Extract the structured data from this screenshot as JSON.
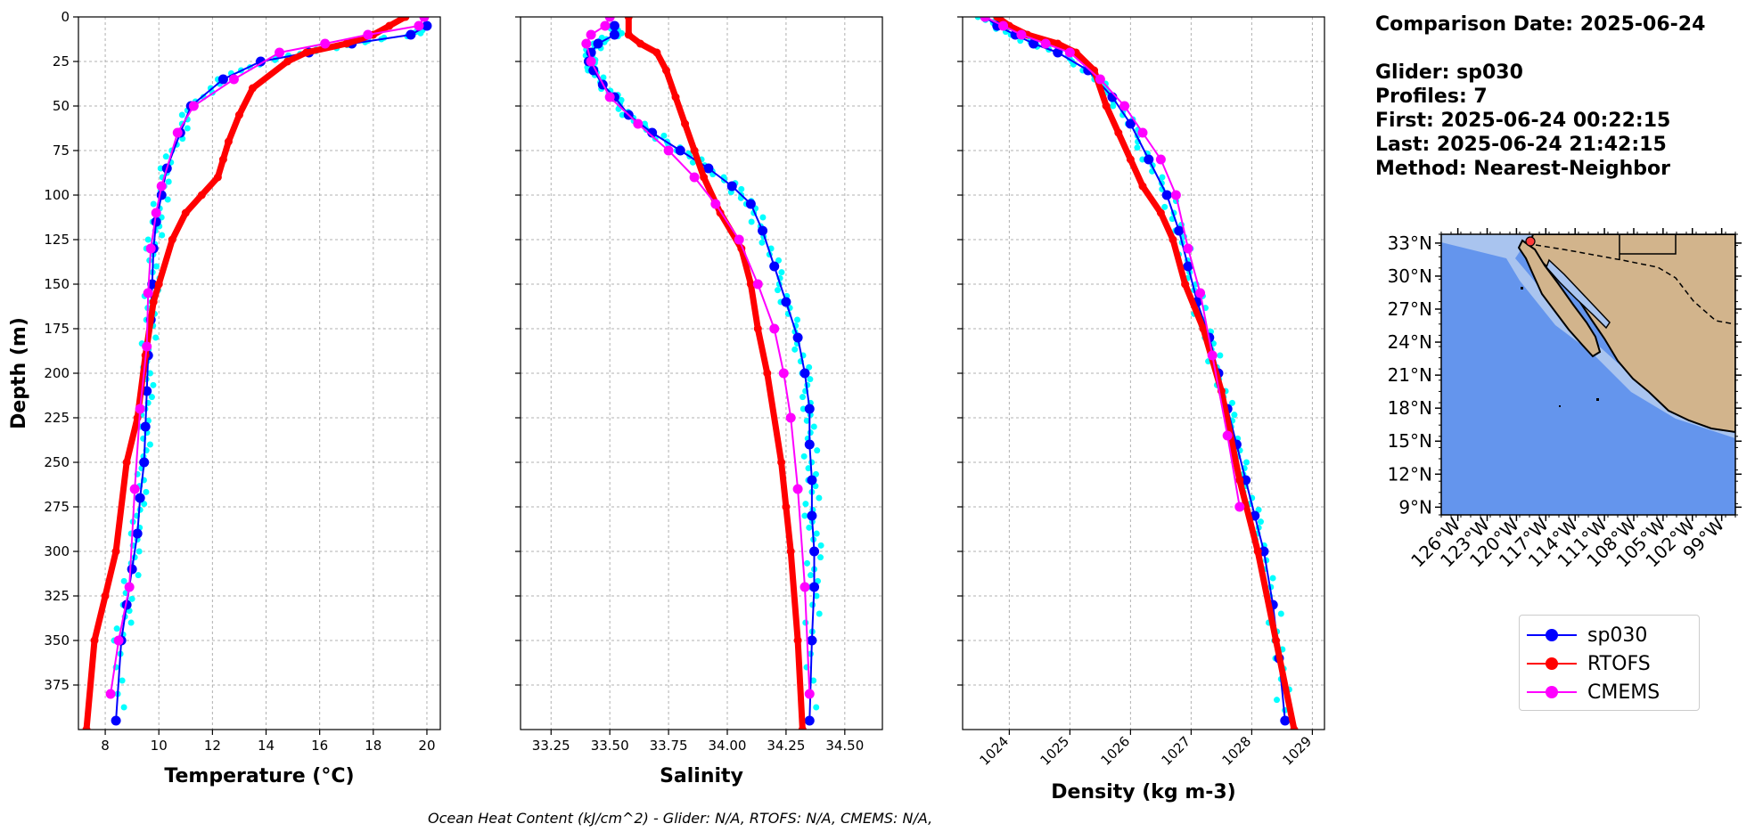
{
  "info": {
    "comparison_date": "Comparison Date: 2025-06-24",
    "glider": "Glider: sp030",
    "profiles": "Profiles: 7",
    "first": "First: 2025-06-24 00:22:15",
    "last": "Last: 2025-06-24 21:42:15",
    "method": "Method: Nearest-Neighbor"
  },
  "footer": "Ocean Heat Content (kJ/cm^2) - Glider: N/A,  RTOFS: N/A,  CMEMS: N/A,",
  "legend": [
    {
      "label": "sp030",
      "color": "#0000ff"
    },
    {
      "label": "RTOFS",
      "color": "#ff0000"
    },
    {
      "label": "CMEMS",
      "color": "#ff00ff"
    }
  ],
  "chart_data": [
    {
      "type": "line",
      "xlabel": "Temperature (°C)",
      "ylabel": "Depth (m)",
      "xlim": [
        7,
        20.5
      ],
      "ylim": [
        400,
        0
      ],
      "xticks": [
        "8",
        "10",
        "12",
        "14",
        "16",
        "18",
        "20"
      ],
      "yticks": [
        "0",
        "25",
        "50",
        "75",
        "100",
        "125",
        "150",
        "175",
        "200",
        "225",
        "250",
        "275",
        "300",
        "325",
        "350",
        "375"
      ],
      "grid": true,
      "series": [
        {
          "name": "sp030",
          "color": "#0000ff",
          "x": [
            20,
            19.4,
            17.2,
            15.6,
            13.8,
            12.4,
            11.2,
            10.8,
            10.3,
            10.1,
            9.9,
            9.8,
            9.75,
            9.7,
            9.6,
            9.55,
            9.5,
            9.45,
            9.3,
            9.2,
            9.0,
            8.8,
            8.6,
            8.4
          ],
          "y": [
            5,
            10,
            15,
            20,
            25,
            35,
            50,
            65,
            85,
            100,
            115,
            130,
            150,
            170,
            190,
            210,
            230,
            250,
            270,
            290,
            310,
            330,
            350,
            395
          ]
        },
        {
          "name": "RTOFS",
          "color": "#ff0000",
          "x": [
            19.2,
            18.6,
            18.0,
            17.0,
            15.5,
            14.8,
            13.5,
            13.0,
            12.6,
            12.4,
            12.2,
            11.6,
            11.0,
            10.5,
            10.0,
            9.8,
            9.5,
            9.2,
            8.8,
            8.4,
            8.0,
            7.6,
            7.3
          ],
          "y": [
            0,
            5,
            10,
            15,
            20,
            25,
            40,
            55,
            70,
            80,
            90,
            100,
            110,
            125,
            150,
            160,
            190,
            225,
            250,
            300,
            325,
            350,
            400
          ]
        },
        {
          "name": "CMEMS",
          "color": "#ff00ff",
          "x": [
            19.9,
            19.7,
            17.8,
            16.2,
            14.5,
            12.8,
            11.3,
            10.7,
            10.1,
            9.9,
            9.7,
            9.6,
            9.55,
            9.3,
            9.1,
            8.9,
            8.5,
            8.2
          ],
          "y": [
            0,
            5,
            10,
            15,
            20,
            35,
            50,
            65,
            95,
            110,
            130,
            155,
            185,
            220,
            265,
            320,
            350,
            380
          ]
        }
      ]
    },
    {
      "type": "line",
      "xlabel": "Salinity",
      "xlim": [
        33.12,
        34.66
      ],
      "ylim": [
        400,
        0
      ],
      "xticks": [
        "33.25",
        "33.50",
        "33.75",
        "34.00",
        "34.25",
        "34.50"
      ],
      "grid": true,
      "series": [
        {
          "name": "sp030",
          "color": "#0000ff",
          "x": [
            33.52,
            33.52,
            33.45,
            33.42,
            33.41,
            33.43,
            33.47,
            33.52,
            33.58,
            33.68,
            33.8,
            33.92,
            34.02,
            34.1,
            34.15,
            34.2,
            34.25,
            34.3,
            34.33,
            34.35,
            34.35,
            34.36,
            34.36,
            34.37,
            34.37,
            34.36,
            34.35
          ],
          "y": [
            5,
            10,
            15,
            20,
            25,
            30,
            38,
            45,
            55,
            65,
            75,
            85,
            95,
            105,
            120,
            140,
            160,
            180,
            200,
            220,
            240,
            260,
            280,
            300,
            320,
            350,
            395
          ]
        },
        {
          "name": "RTOFS",
          "color": "#ff0000",
          "x": [
            33.58,
            33.58,
            33.63,
            33.7,
            33.74,
            33.78,
            33.82,
            33.86,
            33.9,
            33.97,
            34.06,
            34.1,
            34.13,
            34.17,
            34.23,
            34.25,
            34.27,
            34.3,
            34.32
          ],
          "y": [
            0,
            10,
            15,
            20,
            30,
            45,
            60,
            75,
            90,
            110,
            130,
            150,
            175,
            200,
            250,
            275,
            300,
            350,
            400
          ]
        },
        {
          "name": "CMEMS",
          "color": "#ff00ff",
          "x": [
            33.5,
            33.48,
            33.42,
            33.4,
            33.42,
            33.5,
            33.62,
            33.75,
            33.86,
            33.95,
            34.05,
            34.13,
            34.2,
            34.24,
            34.27,
            34.3,
            34.33,
            34.35
          ],
          "y": [
            0,
            5,
            10,
            15,
            25,
            45,
            60,
            75,
            90,
            105,
            125,
            150,
            175,
            200,
            225,
            265,
            320,
            380
          ]
        }
      ]
    },
    {
      "type": "line",
      "xlabel": "Density (kg m-3)",
      "xlim": [
        1023.23,
        1029.2
      ],
      "ylim": [
        400,
        0
      ],
      "xticks": [
        "1024",
        "1025",
        "1026",
        "1027",
        "1028",
        "1029"
      ],
      "grid": true,
      "series": [
        {
          "name": "sp030",
          "color": "#0000ff",
          "x": [
            1023.6,
            1023.8,
            1024.1,
            1024.4,
            1024.8,
            1025.3,
            1025.7,
            1026.0,
            1026.3,
            1026.6,
            1026.8,
            1026.95,
            1027.1,
            1027.3,
            1027.45,
            1027.6,
            1027.75,
            1027.9,
            1028.05,
            1028.2,
            1028.35,
            1028.45,
            1028.55
          ],
          "y": [
            0,
            5,
            10,
            15,
            20,
            30,
            45,
            60,
            80,
            100,
            120,
            140,
            160,
            180,
            200,
            220,
            240,
            260,
            280,
            300,
            330,
            360,
            395
          ]
        },
        {
          "name": "RTOFS",
          "color": "#ff0000",
          "x": [
            1023.8,
            1024.0,
            1024.3,
            1024.8,
            1025.1,
            1025.4,
            1025.6,
            1025.8,
            1026.0,
            1026.2,
            1026.5,
            1026.7,
            1026.9,
            1027.2,
            1027.5,
            1027.8,
            1028.1,
            1028.4,
            1028.7
          ],
          "y": [
            0,
            5,
            10,
            15,
            20,
            30,
            50,
            65,
            80,
            95,
            110,
            125,
            150,
            175,
            210,
            260,
            300,
            350,
            400
          ]
        },
        {
          "name": "CMEMS",
          "color": "#ff00ff",
          "x": [
            1023.6,
            1023.9,
            1024.2,
            1024.6,
            1025.0,
            1025.5,
            1025.9,
            1026.2,
            1026.5,
            1026.75,
            1026.95,
            1027.15,
            1027.35,
            1027.6,
            1027.8
          ],
          "y": [
            0,
            5,
            10,
            15,
            20,
            35,
            50,
            65,
            80,
            100,
            130,
            155,
            190,
            235,
            275
          ]
        }
      ]
    }
  ],
  "map": {
    "ocean_color": "#6495ed",
    "land_color": "#d2b48c",
    "lat_ticks": [
      "33°N",
      "30°N",
      "27°N",
      "24°N",
      "21°N",
      "18°N",
      "15°N",
      "12°N",
      "9°N"
    ],
    "lon_ticks": [
      "126°W",
      "123°W",
      "120°W",
      "117°W",
      "114°W",
      "111°W",
      "108°W",
      "105°W",
      "102°W",
      "99°W"
    ],
    "marker_color": "#ff3b3b"
  }
}
